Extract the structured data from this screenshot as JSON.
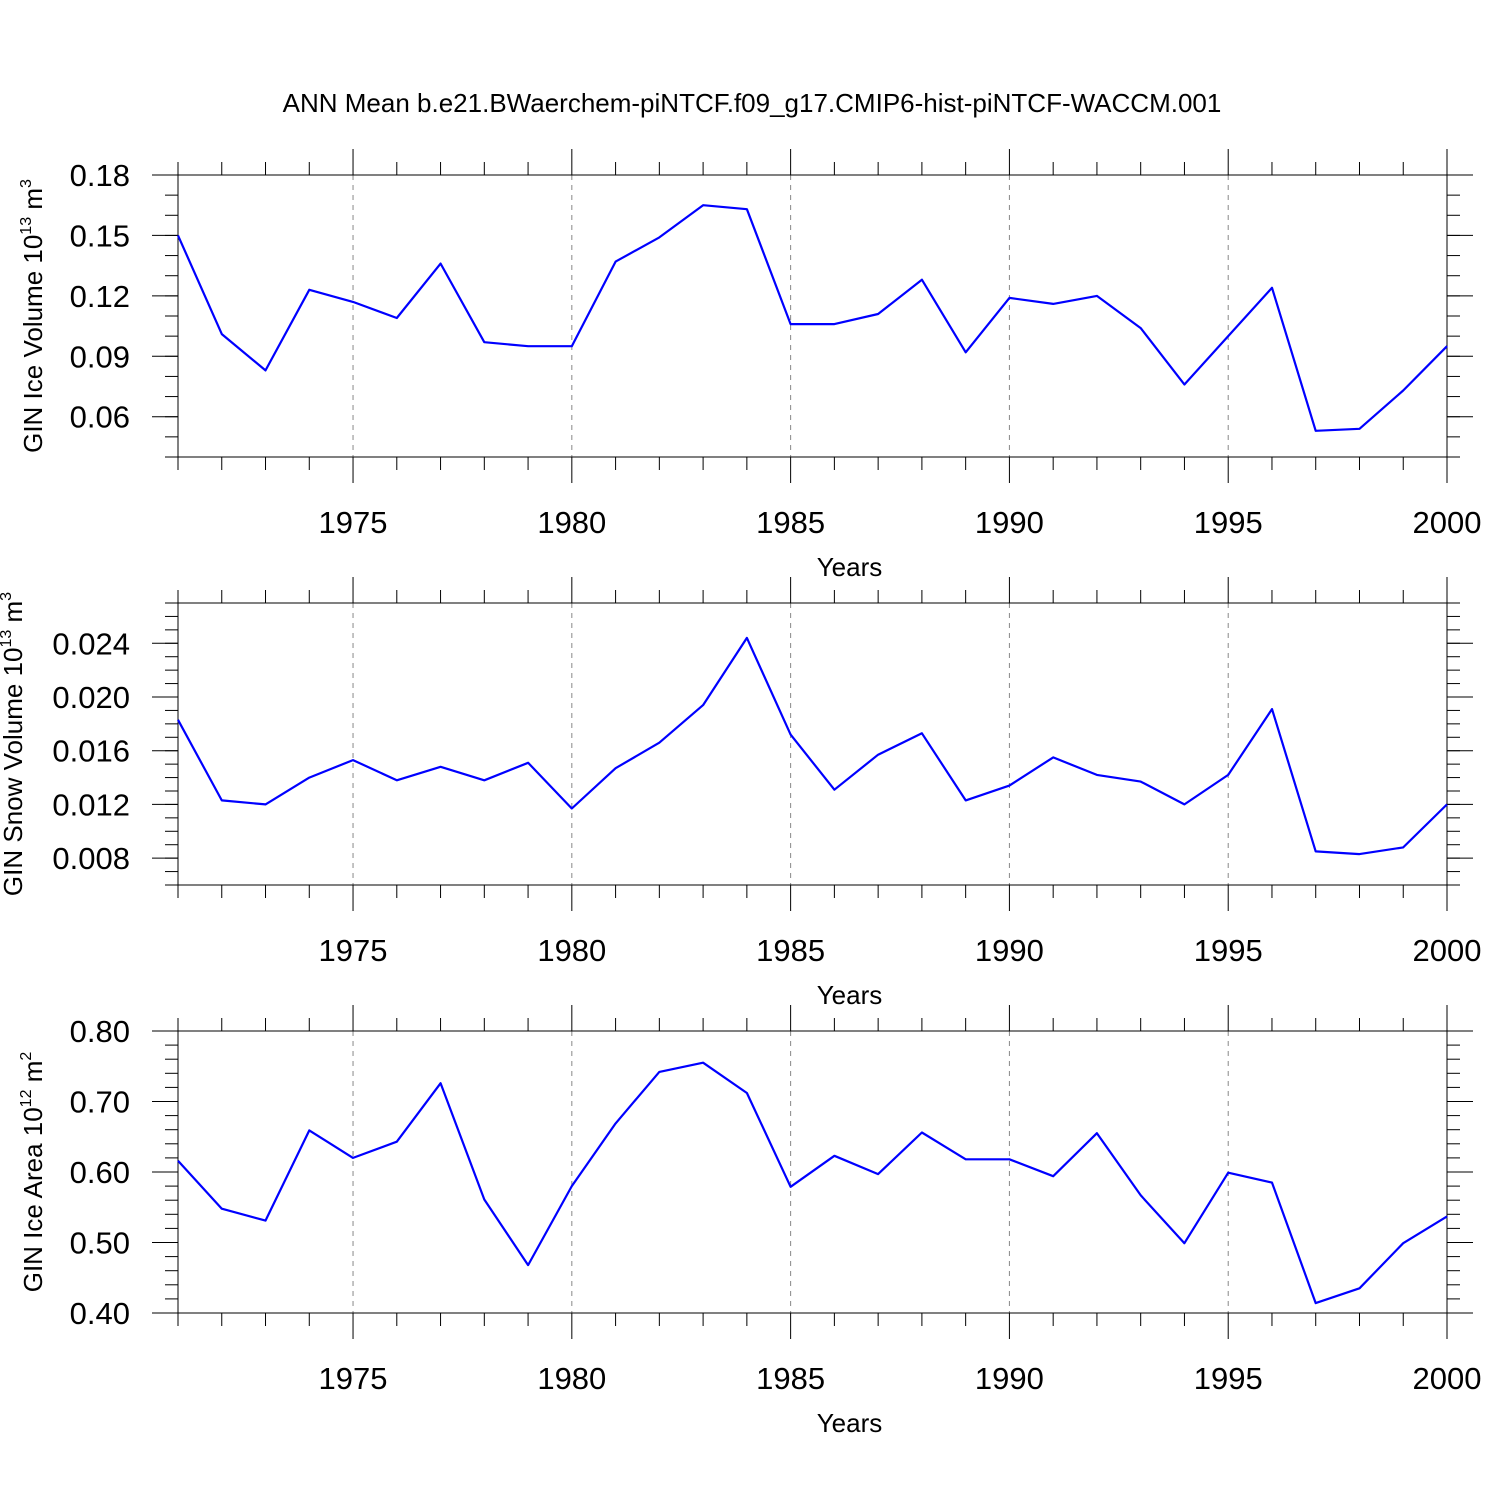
{
  "figure": {
    "title": "ANN Mean b.e21.BWaerchem-piNTCF.f09_g17.CMIP6-hist-piNTCF-WACCM.001",
    "line_color": "#0000ff",
    "grid_color": "#888888"
  },
  "chart_data": [
    {
      "type": "line",
      "title": "",
      "xlabel": "Years",
      "ylabel_main": "GIN Ice Volume 10",
      "ylabel_exp": "13",
      "ylabel_unit": " m",
      "ylabel_unit_exp": "3",
      "xlim": [
        1971,
        2000
      ],
      "ylim": [
        0.04,
        0.18
      ],
      "y_ticks": [
        0.06,
        0.09,
        0.12,
        0.15,
        0.18
      ],
      "y_tick_labels": [
        "0.06",
        "0.09",
        "0.12",
        "0.15",
        "0.18"
      ],
      "y_minor_step": 0.01,
      "x_ticks": [
        1975,
        1980,
        1985,
        1990,
        1995,
        2000
      ],
      "x_tick_labels": [
        "1975",
        "1980",
        "1985",
        "1990",
        "1995",
        "2000"
      ],
      "grid": "vertical dashed at major x ticks",
      "x": [
        1971,
        1972,
        1973,
        1974,
        1975,
        1976,
        1977,
        1978,
        1979,
        1980,
        1981,
        1982,
        1983,
        1984,
        1985,
        1986,
        1987,
        1988,
        1989,
        1990,
        1991,
        1992,
        1993,
        1994,
        1995,
        1996,
        1997,
        1998,
        1999,
        2000
      ],
      "series": [
        {
          "values": [
            0.15,
            0.101,
            0.083,
            0.123,
            0.117,
            0.109,
            0.136,
            0.097,
            0.095,
            0.095,
            0.137,
            0.149,
            0.165,
            0.163,
            0.106,
            0.106,
            0.111,
            0.128,
            0.092,
            0.119,
            0.116,
            0.12,
            0.104,
            0.076,
            0.1,
            0.124,
            0.053,
            0.054,
            0.073,
            0.095
          ]
        }
      ]
    },
    {
      "type": "line",
      "title": "",
      "xlabel": "Years",
      "ylabel_main": "GIN Snow Volume 10",
      "ylabel_exp": "13",
      "ylabel_unit": " m",
      "ylabel_unit_exp": "3",
      "xlim": [
        1971,
        2000
      ],
      "ylim": [
        0.006,
        0.027
      ],
      "y_ticks": [
        0.008,
        0.012,
        0.016,
        0.02,
        0.024
      ],
      "y_tick_labels": [
        "0.008",
        "0.012",
        "0.016",
        "0.020",
        "0.024"
      ],
      "y_minor_step": 0.001,
      "x_ticks": [
        1975,
        1980,
        1985,
        1990,
        1995,
        2000
      ],
      "x_tick_labels": [
        "1975",
        "1980",
        "1985",
        "1990",
        "1995",
        "2000"
      ],
      "grid": "vertical dashed at major x ticks",
      "x": [
        1971,
        1972,
        1973,
        1974,
        1975,
        1976,
        1977,
        1978,
        1979,
        1980,
        1981,
        1982,
        1983,
        1984,
        1985,
        1986,
        1987,
        1988,
        1989,
        1990,
        1991,
        1992,
        1993,
        1994,
        1995,
        1996,
        1997,
        1998,
        1999,
        2000
      ],
      "series": [
        {
          "values": [
            0.0183,
            0.0123,
            0.012,
            0.014,
            0.0153,
            0.0138,
            0.0148,
            0.0138,
            0.0151,
            0.0117,
            0.0147,
            0.0166,
            0.0194,
            0.0244,
            0.0172,
            0.0131,
            0.0157,
            0.0173,
            0.0123,
            0.0134,
            0.0155,
            0.0142,
            0.0137,
            0.012,
            0.0142,
            0.0191,
            0.0085,
            0.0083,
            0.0088,
            0.012
          ]
        }
      ]
    },
    {
      "type": "line",
      "title": "",
      "xlabel": "Years",
      "ylabel_main": "GIN Ice Area 10",
      "ylabel_exp": "12",
      "ylabel_unit": " m",
      "ylabel_unit_exp": "2",
      "xlim": [
        1971,
        2000
      ],
      "ylim": [
        0.4,
        0.8
      ],
      "y_ticks": [
        0.4,
        0.5,
        0.6,
        0.7,
        0.8
      ],
      "y_tick_labels": [
        "0.40",
        "0.50",
        "0.60",
        "0.70",
        "0.80"
      ],
      "y_minor_step": 0.02,
      "x_ticks": [
        1975,
        1980,
        1985,
        1990,
        1995,
        2000
      ],
      "x_tick_labels": [
        "1975",
        "1980",
        "1985",
        "1990",
        "1995",
        "2000"
      ],
      "grid": "vertical dashed at major x ticks",
      "x": [
        1971,
        1972,
        1973,
        1974,
        1975,
        1976,
        1977,
        1978,
        1979,
        1980,
        1981,
        1982,
        1983,
        1984,
        1985,
        1986,
        1987,
        1988,
        1989,
        1990,
        1991,
        1992,
        1993,
        1994,
        1995,
        1996,
        1997,
        1998,
        1999,
        2000
      ],
      "series": [
        {
          "values": [
            0.616,
            0.548,
            0.531,
            0.659,
            0.62,
            0.643,
            0.726,
            0.561,
            0.468,
            0.58,
            0.669,
            0.742,
            0.755,
            0.712,
            0.579,
            0.623,
            0.597,
            0.656,
            0.618,
            0.618,
            0.594,
            0.655,
            0.567,
            0.499,
            0.599,
            0.585,
            0.414,
            0.435,
            0.499,
            0.537
          ]
        }
      ]
    }
  ]
}
